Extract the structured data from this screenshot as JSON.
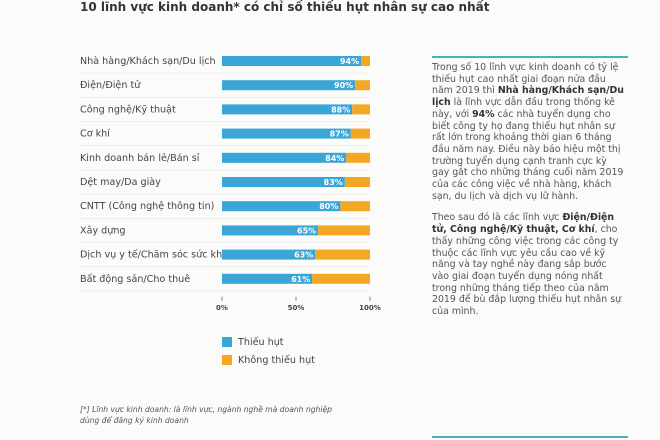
{
  "chart_data": {
    "type": "stacked-bar-horizontal",
    "title": "10 lĩnh vực kinh doanh* có chỉ số thiếu hụt nhân sự cao nhất",
    "categories": [
      "Nhà hàng/Khách sạn/Du lịch",
      "Điện/Điện tử",
      "Công nghệ/Kỹ thuật",
      "Cơ khí",
      "Kinh doanh bán lẻ/Bán sỉ",
      "Dệt may/Da giày",
      "CNTT (Công nghệ thông tin)",
      "Xây dựng",
      "Dịch vụ y tế/Chăm sóc sức khoẻ",
      "Bất động sản/Cho thuê"
    ],
    "series": [
      {
        "name": "Thiếu hụt",
        "color": "#3aa6d8",
        "values": [
          94,
          90,
          88,
          87,
          84,
          83,
          80,
          65,
          63,
          61
        ],
        "value_labels": [
          "94%",
          "90%",
          "88%",
          "87%",
          "84%",
          "83%",
          "80%",
          "65%",
          "63%",
          "61%"
        ]
      },
      {
        "name": "Không thiếu hụt",
        "color": "#f5a623",
        "values": [
          6,
          10,
          12,
          13,
          16,
          17,
          20,
          35,
          37,
          39
        ]
      }
    ],
    "xlim": [
      0,
      100
    ],
    "xticks": [
      {
        "value": 0,
        "label": "0%"
      },
      {
        "value": 50,
        "label": "50%"
      },
      {
        "value": 100,
        "label": "100%"
      }
    ]
  },
  "sidebar": {
    "paragraph_1": [
      "Trong số 10 lĩnh vực kinh doanh có tỷ lệ thiếu hụt cao nhất giai đoạn nửa đầu năm 2019 thì ",
      "Nhà hàng/Khách sạn/Du lịch",
      " là lĩnh vực dẫn đầu trong thống kê này, với ",
      "94%",
      " các nhà tuyển dụng cho biết công ty họ đang thiếu hụt nhân sự rất lớn trong khoảng thời gian 6 tháng đầu năm nay. Điều này báo hiệu một thị trường tuyển dụng cạnh tranh cực kỳ gay gắt cho những tháng cuối năm 2019 của các công việc về nhà hàng, khách sạn, du lịch và dịch vụ lữ hành."
    ],
    "paragraph_2": [
      "Theo sau đó là các lĩnh vực ",
      "Điện/Điện tử, Công nghệ/Kỹ thuật, Cơ khí",
      ", cho thấy những công việc trong các công ty thuộc các lĩnh vực yêu cầu cao về kỹ năng và tay nghề này đang sắp bước vào giai đoạn tuyển dụng nóng nhất trong những tháng tiếp theo của năm 2019 để bù đắp lượng thiếu hụt nhân sự của mình."
    ]
  },
  "footnote": "[*] Lĩnh vực kinh doanh: là lĩnh vực, ngành nghề mà doanh nghiệp dùng để đăng ký kinh doanh"
}
